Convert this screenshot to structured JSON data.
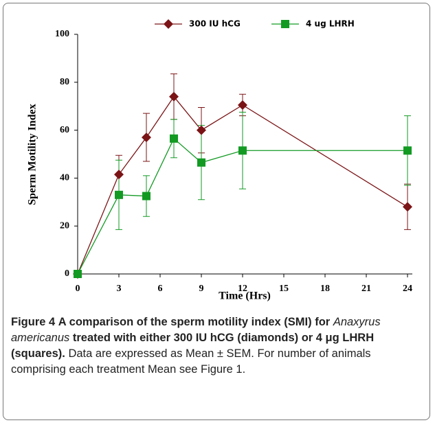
{
  "chart_data": {
    "type": "line",
    "x_label": "Time (Hrs)",
    "y_label": "Sperm Motility Index",
    "x": [
      0,
      3,
      5,
      7,
      9,
      12,
      24
    ],
    "series": [
      {
        "name": "300 IU hCG",
        "color": "#7b1416",
        "marker": "diamond",
        "values": [
          0,
          41.5,
          57,
          74,
          60,
          70.5,
          28
        ],
        "errors": [
          0,
          8,
          10,
          9.5,
          9.5,
          4.5,
          9.5
        ]
      },
      {
        "name": "4 ug LHRH",
        "color": "#129a23",
        "marker": "square",
        "values": [
          0,
          33,
          32.5,
          56.5,
          46.5,
          51.5,
          51.5
        ],
        "errors": [
          0,
          14.5,
          8.5,
          8,
          15.5,
          16,
          14.5
        ]
      }
    ],
    "xlim": [
      0,
      24
    ],
    "xticks": [
      0,
      3,
      6,
      9,
      12,
      15,
      18,
      21,
      24
    ],
    "ylim": [
      0,
      100
    ],
    "yticks": [
      0,
      20,
      40,
      60,
      80,
      100
    ],
    "legend": "top"
  },
  "caption": {
    "label": "Figure 4",
    "bold": "A comparison of the sperm motility index (SMI) for",
    "italic": "Anaxyrus americanus",
    "bold_end": "treated with either 300 IU hCG (diamonds) or 4 μg LHRH (squares).",
    "text": "Data are expressed as Mean ± SEM. For number of animals comprising each treatment Mean see Figure 1."
  }
}
